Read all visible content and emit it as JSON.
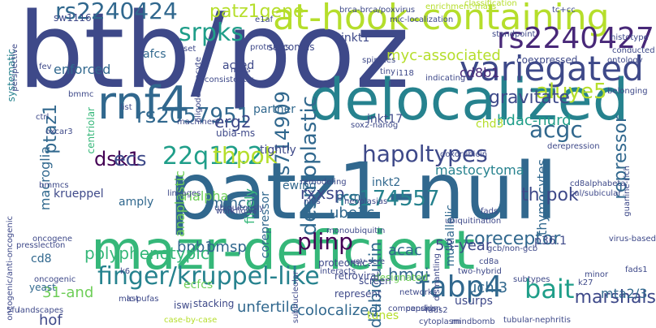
{
  "colors": {
    "background": "#ffffff",
    "palette": [
      "#482878",
      "#3e4989",
      "#31688e",
      "#26828e",
      "#1f9e89",
      "#35b779",
      "#6ece58",
      "#b5de2b",
      "#440154",
      "#fde725"
    ]
  },
  "words": [
    {
      "text": "patz1-null",
      "color": "#31688e"
    },
    {
      "text": "btb/poz",
      "color": "#3e4989"
    },
    {
      "text": "mazr-deficient",
      "color": "#35b779"
    },
    {
      "text": "delocalized",
      "color": "#26828e"
    },
    {
      "text": "at-hook-containing",
      "color": "#b5de2b"
    },
    {
      "text": "rnf4",
      "color": "#31688e"
    },
    {
      "text": "variegated",
      "color": "#3e4989"
    },
    {
      "text": "desmoplastic",
      "color": "#31688e"
    },
    {
      "text": "rs2240427",
      "color": "#482878"
    },
    {
      "text": "rs2240424",
      "color": "#31688e"
    },
    {
      "text": "finger/kruppel-like",
      "color": "#26828e"
    },
    {
      "text": "rs714909",
      "color": "#31688e"
    },
    {
      "text": "22q12.2",
      "color": "#1f9e89"
    },
    {
      "text": "hapoltypes",
      "color": "#3e4989"
    },
    {
      "text": "aluye5",
      "color": "#b5de2b"
    },
    {
      "text": "fabp4",
      "color": "#31688e"
    },
    {
      "text": "bait",
      "color": "#1f9e89"
    },
    {
      "text": "rs2057951",
      "color": "#31688e"
    },
    {
      "text": "gravitate",
      "color": "#3e4989"
    },
    {
      "text": "thpok",
      "color": "#b5de2b"
    },
    {
      "text": "repressor",
      "color": "#31688e"
    },
    {
      "text": "acgc",
      "color": "#31688e"
    },
    {
      "text": "rs174557",
      "color": "#26828e"
    },
    {
      "text": "patz1gene",
      "color": "#b5de2b"
    },
    {
      "text": "srpks",
      "color": "#1f9e89"
    },
    {
      "text": "ptaz1",
      "color": "#31688e"
    },
    {
      "text": "plinp",
      "color": "#440154"
    },
    {
      "text": "coreceptor",
      "color": "#31688e"
    },
    {
      "text": "marshals",
      "color": "#3e4989"
    },
    {
      "text": "31-and",
      "color": "#6ece58"
    },
    {
      "text": "53-year",
      "color": "#3e4989"
    },
    {
      "text": "dsk1",
      "color": "#440154"
    },
    {
      "text": "ecs",
      "color": "#3e4989"
    },
    {
      "text": "bpb1",
      "color": "#31688e"
    },
    {
      "text": "pmsp",
      "color": "#31688e"
    },
    {
      "text": "polyphenotypic",
      "color": "#35b779"
    },
    {
      "text": "unfertile",
      "color": "#31688e"
    },
    {
      "text": "colocalized",
      "color": "#31688e"
    },
    {
      "text": "uchl3",
      "color": "#31688e"
    },
    {
      "text": "mta2/3",
      "color": "#31688e"
    },
    {
      "text": "th-pok",
      "color": "#3e4989"
    },
    {
      "text": "cd8b1",
      "color": "#482878"
    },
    {
      "text": "myc-associated",
      "color": "#b5de2b"
    },
    {
      "text": "hdac-nurd",
      "color": "#1f9e89"
    },
    {
      "text": "macroglia",
      "color": "#31688e"
    },
    {
      "text": "rxxsp",
      "color": "#3e4989"
    },
    {
      "text": "acac",
      "color": "#31688e"
    },
    {
      "text": "diubiquitin",
      "color": "#31688e"
    },
    {
      "text": "erg2",
      "color": "#3e4989"
    },
    {
      "text": "mmcp",
      "color": "#31688e"
    },
    {
      "text": "hmgi",
      "color": "#31688e"
    },
    {
      "text": "hof",
      "color": "#3e4989"
    },
    {
      "text": "mastocytoma",
      "color": "#26828e"
    },
    {
      "text": "rialpha",
      "color": "#6ece58"
    },
    {
      "text": "ecfcs",
      "color": "#6ece58"
    },
    {
      "text": "ube3c",
      "color": "#31688e"
    },
    {
      "text": "thymocytes",
      "color": "#31688e"
    },
    {
      "text": "enforced",
      "color": "#31688e"
    },
    {
      "text": "afcs",
      "color": "#31688e"
    },
    {
      "text": "acted",
      "color": "#3e4989"
    },
    {
      "text": "inkt1",
      "color": "#3e4989"
    },
    {
      "text": "inkt2",
      "color": "#31688e"
    },
    {
      "text": "inkt17",
      "color": "#3e4989"
    },
    {
      "text": "chd3",
      "color": "#b5de2b"
    },
    {
      "text": "p36.1",
      "color": "#3e4989"
    },
    {
      "text": "partner",
      "color": "#31688e"
    },
    {
      "text": "corepressor",
      "color": "#31688e"
    },
    {
      "text": "multiallelic",
      "color": "#31688e"
    },
    {
      "text": "finely",
      "color": "#35b779"
    },
    {
      "text": "anaplastic",
      "color": "#6ece58"
    },
    {
      "text": "cd8",
      "color": "#31688e"
    },
    {
      "text": "krueppel",
      "color": "#3e4989"
    },
    {
      "text": "amply",
      "color": "#31688e"
    },
    {
      "text": "tightly",
      "color": "#3e4989"
    },
    {
      "text": "ewing",
      "color": "#31688e"
    },
    {
      "text": "pcm1",
      "color": "#31688e"
    },
    {
      "text": "sw1116",
      "color": "#3e4989"
    },
    {
      "text": "coexpressed",
      "color": "#3e4989"
    },
    {
      "text": "sarcomas",
      "color": "#3e4989"
    },
    {
      "text": "ubia-ms",
      "color": "#3e4989"
    },
    {
      "text": "systematic",
      "color": "#26828e"
    },
    {
      "text": "centriolar",
      "color": "#35b779"
    },
    {
      "text": "usurps",
      "color": "#3e4989"
    },
    {
      "text": "yeast",
      "color": "#31688e"
    },
    {
      "text": "tunes",
      "color": "#b5de2b"
    },
    {
      "text": "designated",
      "color": "#6ece58"
    },
    {
      "text": "retroviral",
      "color": "#3e4989"
    },
    {
      "text": "represent",
      "color": "#3e4989"
    },
    {
      "text": "proteomic",
      "color": "#3e4989"
    },
    {
      "text": "stacking",
      "color": "#3e4989"
    },
    {
      "text": "iswi",
      "color": "#3e4989"
    },
    {
      "text": "screen",
      "color": "#3e4989"
    },
    {
      "text": "networks",
      "color": "#3e4989"
    },
    {
      "text": "ubiquitination",
      "color": "#3e4989"
    },
    {
      "text": "remodeling",
      "color": "#3e4989"
    },
    {
      "text": "nhls",
      "color": "#3e4989"
    },
    {
      "text": "neoplasias",
      "color": "#3e4989"
    },
    {
      "text": "fads",
      "color": "#3e4989"
    },
    {
      "text": "workflows",
      "color": "#3e4989"
    },
    {
      "text": "linkages",
      "color": "#3e4989"
    },
    {
      "text": "ubiquitously",
      "color": "#3e4989"
    },
    {
      "text": "machinery",
      "color": "#3e4989"
    },
    {
      "text": "doxorubicin",
      "color": "#3e4989"
    },
    {
      "text": "derepression",
      "color": "#3e4989"
    },
    {
      "text": "cd8alphabeta",
      "color": "#3e4989"
    },
    {
      "text": "cal/subicular",
      "color": "#3e4989"
    },
    {
      "text": "guanine-rich",
      "color": "#3e4989"
    },
    {
      "text": "mefs",
      "color": "#3e4989"
    },
    {
      "text": "sox2-nanog",
      "color": "#3e4989"
    },
    {
      "text": "indicating",
      "color": "#3e4989"
    },
    {
      "text": "ontology",
      "color": "#3e4989"
    },
    {
      "text": "conducted",
      "color": "#3e4989"
    },
    {
      "text": "histotype",
      "color": "#3e4989"
    },
    {
      "text": "belonging",
      "color": "#3e4989"
    },
    {
      "text": "standpoint",
      "color": "#3e4989"
    },
    {
      "text": "classification",
      "color": "#b5de2b"
    },
    {
      "text": "enrichment-mass",
      "color": "#b5de2b"
    },
    {
      "text": "bmmcs",
      "color": "#3e4989"
    },
    {
      "text": "bmmc",
      "color": "#3e4989"
    },
    {
      "text": "ctrl",
      "color": "#3e4989"
    },
    {
      "text": "perspective",
      "color": "#3e4989"
    },
    {
      "text": "oncogenic/anti-oncogenic",
      "color": "#3e4989"
    },
    {
      "text": "landscapes",
      "color": "#3e4989"
    },
    {
      "text": "5fu",
      "color": "#3e4989"
    },
    {
      "text": "case-by-case",
      "color": "#b5de2b"
    },
    {
      "text": "cytoplasm",
      "color": "#3e4989"
    },
    {
      "text": "tubular-nephritis",
      "color": "#3e4989"
    },
    {
      "text": "mindbomb",
      "color": "#3e4989"
    },
    {
      "text": "k27",
      "color": "#3e4989"
    },
    {
      "text": "fads1",
      "color": "#3e4989"
    },
    {
      "text": "virus-based",
      "color": "#3e4989"
    },
    {
      "text": "minor",
      "color": "#3e4989"
    },
    {
      "text": "subtypes",
      "color": "#3e4989"
    },
    {
      "text": "gcb/non-gcb",
      "color": "#3e4989"
    },
    {
      "text": "mast",
      "color": "#3e4989"
    },
    {
      "text": "interacts",
      "color": "#3e4989"
    },
    {
      "text": "compendium",
      "color": "#3e4989"
    },
    {
      "text": "capsids",
      "color": "#3e4989"
    },
    {
      "text": "dismantling",
      "color": "#3e4989"
    },
    {
      "text": "two-hybrid",
      "color": "#3e4989"
    },
    {
      "text": "subnucleolar",
      "color": "#3e4989"
    },
    {
      "text": "monoubiquitin",
      "color": "#3e4989"
    },
    {
      "text": "lc-pufas",
      "color": "#3e4989"
    },
    {
      "text": "tiny",
      "color": "#3e4989"
    },
    {
      "text": "oligodendrocyte",
      "color": "#3e4989"
    },
    {
      "text": "consistently",
      "color": "#3e4989"
    },
    {
      "text": "spindles",
      "color": "#3e4989"
    },
    {
      "text": "i118",
      "color": "#3e4989"
    },
    {
      "text": "led",
      "color": "#3e4989"
    },
    {
      "text": "list",
      "color": "#3e4989"
    },
    {
      "text": "set",
      "color": "#3e4989"
    },
    {
      "text": "protrudes",
      "color": "#3e4989"
    },
    {
      "text": "mic-localization",
      "color": "#3e4989"
    },
    {
      "text": "brca-brca/poxvirus",
      "color": "#3e4989"
    },
    {
      "text": "e1af",
      "color": "#3e4989"
    },
    {
      "text": "k6",
      "color": "#3e4989"
    },
    {
      "text": "tc+cc",
      "color": "#3e4989"
    },
    {
      "text": "oncogene",
      "color": "#3e4989"
    },
    {
      "text": "presslection",
      "color": "#3e4989"
    },
    {
      "text": "oncogenic",
      "color": "#3e4989"
    },
    {
      "text": "oxcar3",
      "color": "#3e4989"
    },
    {
      "text": "fev",
      "color": "#3e4989"
    },
    {
      "text": "vav-scre",
      "color": "#3e4989"
    },
    {
      "text": "fads2",
      "color": "#3e4989"
    },
    {
      "text": "cd8a",
      "color": "#3e4989"
    },
    {
      "text": "cd4",
      "color": "#3e4989"
    }
  ]
}
